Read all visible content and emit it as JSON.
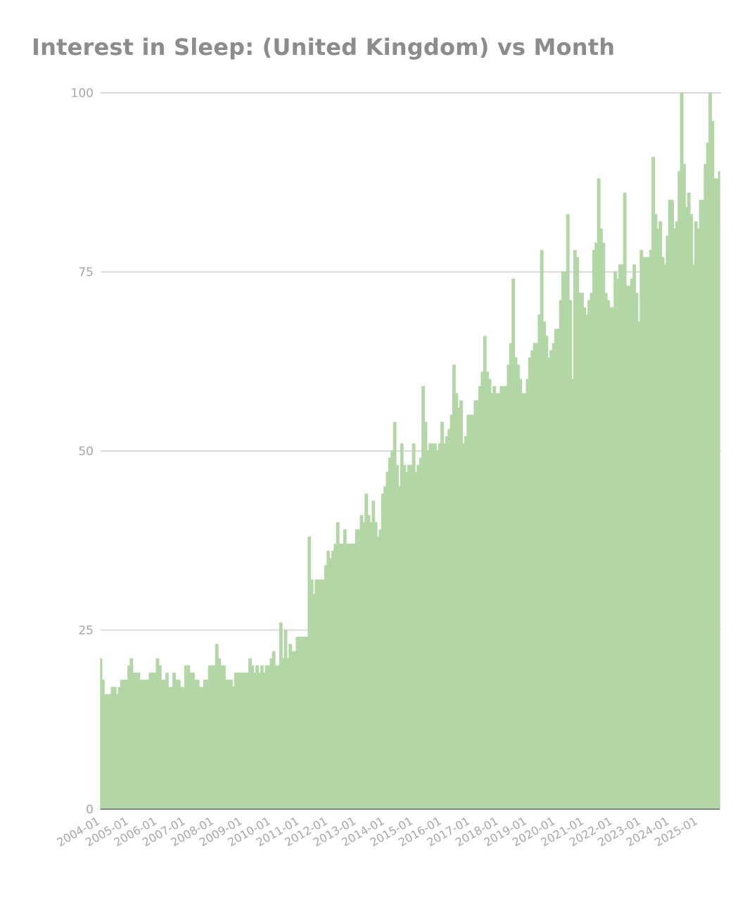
{
  "chart_data": {
    "type": "area",
    "title": "Interest in Sleep: (United Kingdom) vs Month",
    "xlabel": "",
    "ylabel": "",
    "ylim": [
      0,
      100
    ],
    "yticks": [
      0,
      25,
      50,
      75,
      100
    ],
    "grid": true,
    "legend": "none",
    "color": "#b3d6a6",
    "baseline_color": "#6d6d6d",
    "grid_color": "#d9d9d9",
    "x_start": "2004-01",
    "x_end": "2025-02",
    "xtick_labels": [
      "2004-01",
      "2005-01",
      "2006-01",
      "2007-01",
      "2008-01",
      "2009-01",
      "2010-01",
      "2011-01",
      "2012-01",
      "2013-01",
      "2014-01",
      "2015-01",
      "2016-01",
      "2017-01",
      "2018-01",
      "2019-01",
      "2020-01",
      "2021-01",
      "2022-01",
      "2023-01",
      "2024-01",
      "2025-01"
    ],
    "series": [
      {
        "name": "Sleep (United Kingdom)",
        "values": [
          21,
          18,
          16,
          16,
          16,
          17,
          17,
          16,
          17,
          18,
          18,
          18,
          20,
          21,
          19,
          19,
          19,
          18,
          18,
          18,
          18,
          19,
          19,
          19,
          21,
          20,
          18,
          18,
          19,
          17,
          17,
          19,
          18,
          18,
          17,
          17,
          20,
          20,
          19,
          19,
          18,
          18,
          17,
          17,
          18,
          18,
          20,
          20,
          20,
          23,
          21,
          20,
          20,
          18,
          18,
          18,
          17,
          19,
          19,
          19,
          19,
          19,
          19,
          21,
          20,
          19,
          20,
          19,
          20,
          19,
          20,
          20,
          21,
          22,
          20,
          20,
          26,
          21,
          25,
          21,
          23,
          22,
          22,
          24,
          24,
          24,
          24,
          24,
          38,
          32,
          30,
          32,
          32,
          32,
          32,
          34,
          36,
          35,
          36,
          37,
          40,
          37,
          37,
          39,
          37,
          37,
          37,
          37,
          39,
          39,
          41,
          40,
          44,
          41,
          40,
          43,
          40,
          38,
          39,
          44,
          45,
          47,
          49,
          50,
          54,
          48,
          45,
          51,
          48,
          47,
          48,
          48,
          51,
          47,
          48,
          49,
          59,
          54,
          50,
          51,
          51,
          51,
          50,
          51,
          54,
          51,
          52,
          53,
          55,
          62,
          58,
          56,
          57,
          51,
          52,
          55,
          55,
          55,
          57,
          57,
          59,
          61,
          66,
          61,
          60,
          58,
          59,
          58,
          58,
          59,
          59,
          59,
          62,
          65,
          74,
          63,
          62,
          60,
          58,
          58,
          60,
          63,
          64,
          65,
          65,
          69,
          78,
          68,
          66,
          63,
          64,
          65,
          67,
          67,
          71,
          75,
          75,
          83,
          71,
          60,
          78,
          77,
          72,
          72,
          70,
          69,
          71,
          72,
          78,
          79,
          88,
          81,
          79,
          72,
          71,
          70,
          70,
          75,
          74,
          76,
          76,
          86,
          73,
          73,
          74,
          76,
          72,
          68,
          78,
          77,
          77,
          77,
          78,
          91,
          83,
          81,
          82,
          77,
          76,
          80,
          85,
          85,
          81,
          82,
          89,
          100,
          90,
          84,
          86,
          83,
          76,
          82,
          81,
          85,
          85,
          90,
          93,
          100,
          96,
          88,
          88,
          89
        ]
      }
    ]
  }
}
